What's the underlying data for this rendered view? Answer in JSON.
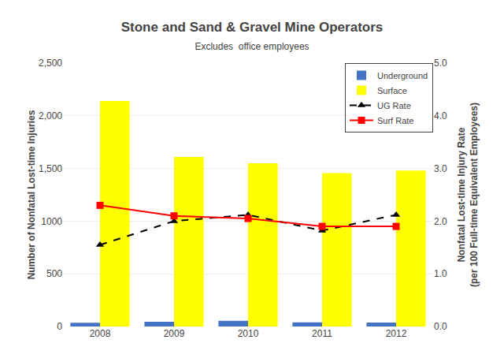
{
  "chart_data": {
    "type": "bar",
    "title": "Stone and Sand & Gravel Mine Operators",
    "subtitle": "Excludes  office employees",
    "categories": [
      "2008",
      "2009",
      "2010",
      "2011",
      "2012"
    ],
    "series": [
      {
        "name": "Underground",
        "type": "bar",
        "color": "#4472C4",
        "values": [
          35,
          45,
          55,
          40,
          38
        ]
      },
      {
        "name": "Surface",
        "type": "bar",
        "color": "#FFFF00",
        "values": [
          2140,
          1610,
          1550,
          1455,
          1480
        ]
      },
      {
        "name": "UG Rate",
        "type": "line",
        "axis": "y2",
        "color": "#000000",
        "marker": "triangle-up",
        "line_style": "dashed",
        "values": [
          1.55,
          2.0,
          2.12,
          1.82,
          2.12
        ]
      },
      {
        "name": "Surf Rate",
        "type": "line",
        "axis": "y2",
        "color": "#FF0000",
        "marker": "square",
        "line_style": "solid",
        "values": [
          2.3,
          2.1,
          2.05,
          1.9,
          1.9
        ]
      }
    ],
    "ylabel": "Number of Nonfatal Lost-time Injuries",
    "y2label": "Nonfatal Lost-time Injury Rate\n(per 100 Full-time Equivalent Employees)",
    "ylim": [
      0,
      2500
    ],
    "yticks": [
      0,
      500,
      1000,
      {
        "value": 1500,
        "label": "1,500"
      },
      {
        "value": 2000,
        "label": "2,000"
      },
      {
        "value": 2500,
        "label": "2,500"
      }
    ],
    "y2lim": [
      0,
      5.0
    ],
    "y2ticks": [
      {
        "value": 0.0,
        "label": "0.0"
      },
      {
        "value": 1.0,
        "label": "1.0"
      },
      {
        "value": 2.0,
        "label": "2.0"
      },
      {
        "value": 3.0,
        "label": "3.0"
      },
      {
        "value": 4.0,
        "label": "4.0"
      },
      {
        "value": 5.0,
        "label": "5.0"
      }
    ],
    "grid": true,
    "legend": "upper right"
  }
}
